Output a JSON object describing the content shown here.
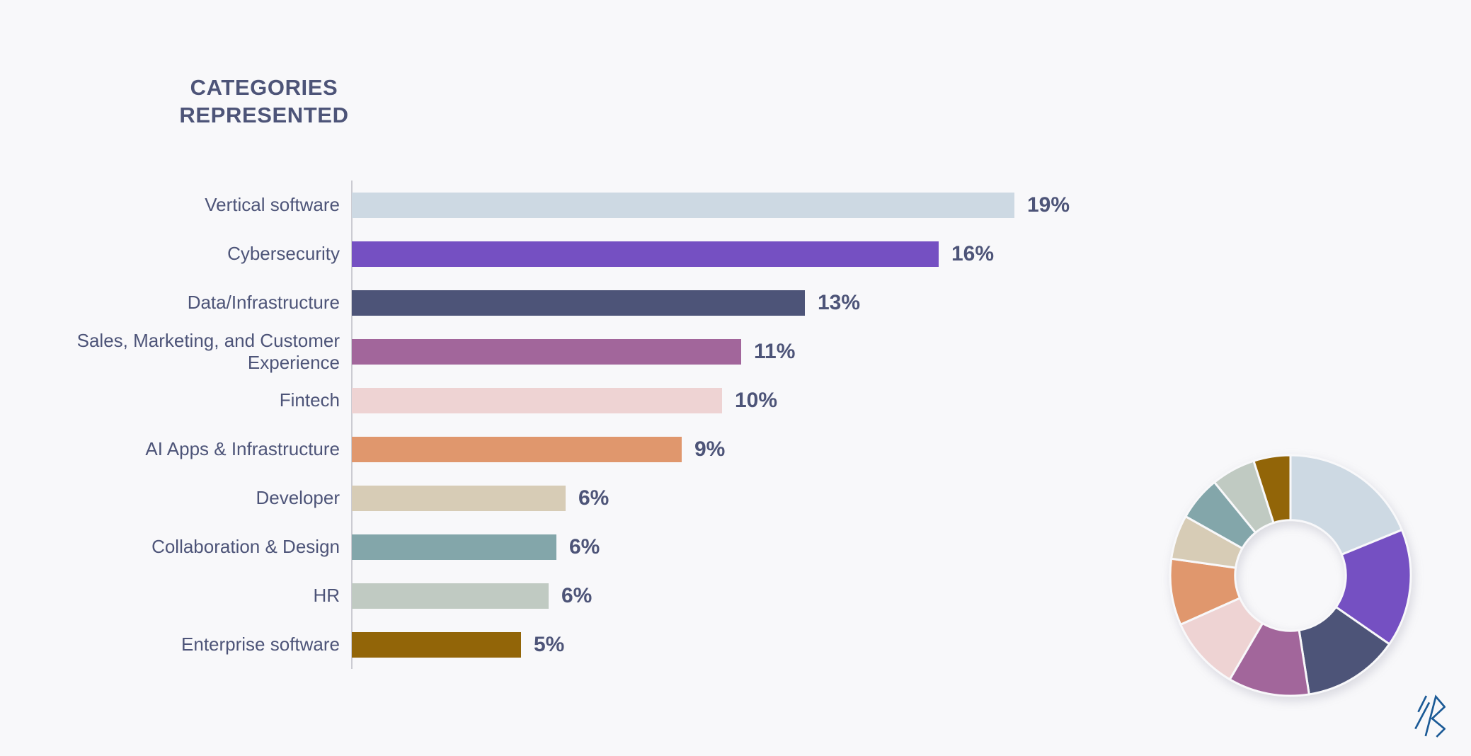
{
  "page": {
    "background": "#f8f8fa",
    "text_color": "#4d5478",
    "axis_color": "#cbcbd2",
    "title_line1": "CATEGORIES",
    "title_line2": "REPRESENTED",
    "logo": {
      "name": "bessemer-logo",
      "color": "#1b5a96"
    }
  },
  "chart_data": [
    {
      "type": "bar",
      "orientation": "horizontal",
      "title": "CATEGORIES REPRESENTED",
      "categories": [
        "Vertical software",
        "Cybersecurity",
        "Data/Infrastructure",
        "Sales, Marketing, and Customer Experience",
        "Fintech",
        "AI Apps & Infrastructure",
        "Developer",
        "Collaboration & Design",
        "HR",
        "Enterprise software"
      ],
      "values": [
        19,
        16,
        13,
        11,
        10,
        9,
        6,
        6,
        6,
        5
      ],
      "value_labels": [
        "19%",
        "16%",
        "13%",
        "11%",
        "10%",
        "9%",
        "6%",
        "6%",
        "6%",
        "5%"
      ],
      "colors": [
        "#cdd9e3",
        "#7550c2",
        "#4d5478",
        "#a2669b",
        "#eed3d3",
        "#e0976d",
        "#d7ccb6",
        "#83a6aa",
        "#c0cac2",
        "#926508"
      ],
      "bar_length_ratios": [
        1.0,
        0.886,
        0.684,
        0.588,
        0.559,
        0.498,
        0.323,
        0.309,
        0.297,
        0.255
      ],
      "xlabel": "",
      "ylabel": "",
      "grid": false,
      "data_labels": "end of bar"
    },
    {
      "type": "pie",
      "donut": true,
      "categories": [
        "Vertical software",
        "Cybersecurity",
        "Data/Infrastructure",
        "Sales, Marketing, and Customer Experience",
        "Fintech",
        "AI Apps & Infrastructure",
        "Developer",
        "Collaboration & Design",
        "HR",
        "Enterprise software"
      ],
      "values": [
        19,
        16,
        13,
        11,
        10,
        9,
        6,
        6,
        6,
        5
      ],
      "colors": [
        "#cdd9e3",
        "#7550c2",
        "#4d5478",
        "#a2669b",
        "#eed3d3",
        "#e0976d",
        "#d7ccb6",
        "#83a6aa",
        "#c0cac2",
        "#926508"
      ],
      "start": "top",
      "direction": "clockwise",
      "inner_radius_ratio": 0.46,
      "legend": "none"
    }
  ]
}
